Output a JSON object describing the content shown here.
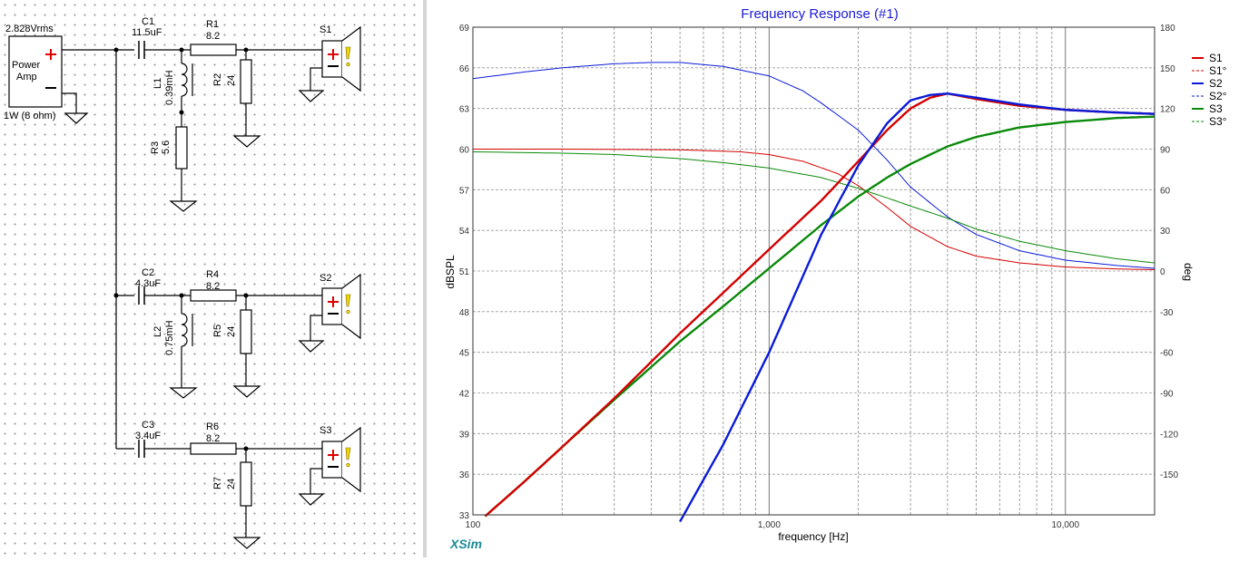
{
  "schematic": {
    "source": {
      "voltage": "2.828Vrms",
      "label_line1": "Power",
      "label_line2": "Amp",
      "power": "1W (8 ohm)"
    },
    "components": [
      {
        "ref": "C1",
        "value": "11.5uF"
      },
      {
        "ref": "R1",
        "value": "8.2"
      },
      {
        "ref": "L1",
        "value": "0.39mH"
      },
      {
        "ref": "R2",
        "value": "24"
      },
      {
        "ref": "R3",
        "value": "5.6"
      },
      {
        "ref": "C2",
        "value": "4.3uF"
      },
      {
        "ref": "R4",
        "value": "8.2"
      },
      {
        "ref": "L2",
        "value": "0.75mH"
      },
      {
        "ref": "R5",
        "value": "24"
      },
      {
        "ref": "C3",
        "value": "3.4uF"
      },
      {
        "ref": "R6",
        "value": "8.2"
      },
      {
        "ref": "R7",
        "value": "24"
      }
    ],
    "speakers": [
      "S1",
      "S2",
      "S3"
    ]
  },
  "app": {
    "brand": "XSim"
  },
  "chart_data": {
    "type": "line",
    "title": "Frequency Response (#1)",
    "xlabel": "frequency [Hz]",
    "ylabel": "dBSPL",
    "y2label": "deg",
    "xscale": "log",
    "xlim": [
      100,
      20000
    ],
    "ylim": [
      33,
      69
    ],
    "y2lim": [
      -180,
      180
    ],
    "xticks": [
      "100",
      "1,000",
      "10,000"
    ],
    "yticks": [
      "69",
      "66",
      "63",
      "60",
      "57",
      "54",
      "51",
      "48",
      "45",
      "42",
      "39",
      "36",
      "33"
    ],
    "y2ticks": [
      "180",
      "150",
      "120",
      "90",
      "60",
      "30",
      "0",
      "-30",
      "-60",
      "-90",
      "-120",
      "-150"
    ],
    "grid": true,
    "legend_position": "right",
    "series": [
      {
        "name": "S1",
        "axis": "left",
        "color": "#d40000",
        "width": 2.4,
        "x": [
          110,
          150,
          200,
          300,
          500,
          700,
          1000,
          1500,
          2000,
          2500,
          3000,
          3500,
          4000,
          5000,
          7000,
          10000,
          15000,
          20000
        ],
        "y": [
          32.9,
          35.5,
          38,
          41.6,
          46.4,
          49.4,
          52.6,
          56.2,
          59.1,
          61.4,
          63,
          63.8,
          64.1,
          63.7,
          63.2,
          62.9,
          62.7,
          62.6
        ]
      },
      {
        "name": "S1°",
        "axis": "right",
        "color": "#d40000",
        "width": 1,
        "dash": false,
        "x": [
          100,
          200,
          500,
          800,
          1000,
          1300,
          1700,
          2000,
          2500,
          3000,
          4000,
          5000,
          7000,
          10000,
          15000,
          20000
        ],
        "y": [
          90,
          90,
          89.5,
          88,
          86,
          81,
          72,
          63,
          47,
          33,
          18,
          11,
          6,
          3,
          1.5,
          1
        ]
      },
      {
        "name": "S2",
        "axis": "left",
        "color": "#0a1ad8",
        "width": 2.4,
        "x": [
          500,
          700,
          1000,
          1500,
          2000,
          2500,
          3000,
          3500,
          4000,
          5000,
          7000,
          10000,
          15000,
          20000
        ],
        "y": [
          32.5,
          38.2,
          45,
          53.7,
          58.8,
          61.9,
          63.6,
          64,
          64.1,
          63.8,
          63.3,
          62.9,
          62.7,
          62.6
        ]
      },
      {
        "name": "S2°",
        "axis": "right",
        "color": "#0a1ad8",
        "width": 1,
        "dash": false,
        "x": [
          100,
          150,
          200,
          300,
          400,
          500,
          700,
          1000,
          1300,
          1500,
          2000,
          2500,
          3000,
          4000,
          5000,
          7000,
          10000,
          15000,
          20000
        ],
        "y": [
          142,
          147,
          150,
          153,
          154,
          154,
          151,
          144,
          133,
          124,
          104,
          82,
          62,
          40,
          27,
          15,
          8,
          4,
          2
        ]
      },
      {
        "name": "S3",
        "axis": "left",
        "color": "#0a8a0a",
        "width": 2.4,
        "x": [
          110,
          150,
          200,
          300,
          500,
          700,
          1000,
          1500,
          2000,
          2500,
          3000,
          3500,
          4000,
          5000,
          7000,
          10000,
          15000,
          20000
        ],
        "y": [
          32.9,
          35.5,
          38,
          41.5,
          45.8,
          48.4,
          51.2,
          54.4,
          56.5,
          57.9,
          58.9,
          59.6,
          60.2,
          60.9,
          61.6,
          62.0,
          62.3,
          62.4
        ]
      },
      {
        "name": "S3°",
        "axis": "right",
        "color": "#0a8a0a",
        "width": 1,
        "dash": false,
        "x": [
          100,
          200,
          300,
          500,
          700,
          1000,
          1500,
          2000,
          2500,
          3000,
          4000,
          5000,
          7000,
          10000,
          15000,
          20000
        ],
        "y": [
          88,
          87,
          86,
          83,
          80,
          76,
          69,
          61,
          54,
          48,
          39,
          31,
          22,
          15,
          9,
          6
        ]
      }
    ]
  }
}
